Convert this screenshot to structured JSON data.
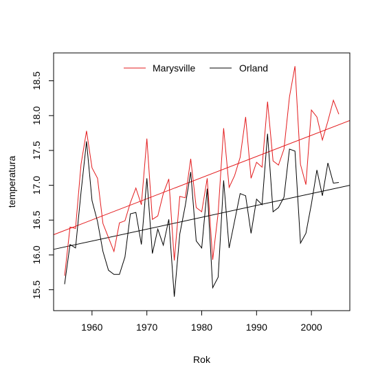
{
  "chart_data": {
    "type": "line",
    "xlabel": "Rok",
    "ylabel": "temperatura",
    "xlim": [
      1953,
      2007
    ],
    "ylim": [
      15.2,
      18.9
    ],
    "xticks": [
      "1960",
      "1970",
      "1980",
      "1990",
      "2000"
    ],
    "yticks": [
      "15.5",
      "16.0",
      "16.5",
      "17.0",
      "17.5",
      "18.0",
      "18.5"
    ],
    "legend_position": "top",
    "grid": false,
    "series": [
      {
        "name": "Marysville",
        "color": "#e31a1c",
        "x": [
          1955,
          1956,
          1957,
          1958,
          1959,
          1960,
          1961,
          1962,
          1963,
          1964,
          1965,
          1966,
          1967,
          1968,
          1969,
          1970,
          1971,
          1972,
          1973,
          1974,
          1975,
          1976,
          1977,
          1978,
          1979,
          1980,
          1981,
          1982,
          1983,
          1984,
          1985,
          1986,
          1987,
          1988,
          1989,
          1990,
          1991,
          1992,
          1993,
          1994,
          1995,
          1996,
          1997,
          1998,
          1999,
          2000,
          2001,
          2002,
          2003,
          2004,
          2005
        ],
        "y": [
          15.7,
          16.4,
          16.38,
          17.3,
          17.78,
          17.25,
          17.1,
          16.45,
          16.25,
          16.05,
          16.46,
          16.49,
          16.75,
          16.96,
          16.72,
          17.67,
          16.51,
          16.56,
          16.88,
          17.09,
          15.92,
          16.84,
          16.82,
          17.38,
          16.68,
          16.62,
          17.1,
          15.93,
          16.6,
          17.82,
          16.97,
          17.14,
          17.4,
          17.98,
          17.1,
          17.33,
          17.26,
          18.2,
          17.35,
          17.29,
          17.52,
          18.27,
          18.71,
          17.3,
          17.01,
          18.08,
          17.98,
          17.65,
          17.92,
          18.22,
          18.02
        ]
      },
      {
        "name": "Orland",
        "color": "#000000",
        "x": [
          1955,
          1956,
          1957,
          1958,
          1959,
          1960,
          1961,
          1962,
          1963,
          1964,
          1965,
          1966,
          1967,
          1968,
          1969,
          1970,
          1971,
          1972,
          1973,
          1974,
          1975,
          1976,
          1977,
          1978,
          1979,
          1980,
          1981,
          1982,
          1983,
          1984,
          1985,
          1986,
          1987,
          1988,
          1989,
          1990,
          1991,
          1992,
          1993,
          1994,
          1995,
          1996,
          1997,
          1998,
          1999,
          2000,
          2001,
          2002,
          2003,
          2004,
          2005
        ],
        "y": [
          15.58,
          16.15,
          16.1,
          16.9,
          17.63,
          16.78,
          16.48,
          16.05,
          15.78,
          15.72,
          15.72,
          15.97,
          16.59,
          16.61,
          16.15,
          17.1,
          16.02,
          16.37,
          16.14,
          16.51,
          15.4,
          16.3,
          16.71,
          17.19,
          16.2,
          16.1,
          16.95,
          15.53,
          15.68,
          17.07,
          16.1,
          16.49,
          16.88,
          16.85,
          16.31,
          16.8,
          16.72,
          17.74,
          16.62,
          16.68,
          16.83,
          17.52,
          17.49,
          16.17,
          16.31,
          16.73,
          17.22,
          16.85,
          17.32,
          17.03,
          17.04
        ]
      }
    ],
    "trendlines": [
      {
        "name": "Marysville",
        "color": "#e31a1c",
        "x": [
          1953,
          2007
        ],
        "y": [
          16.29,
          17.93
        ]
      },
      {
        "name": "Orland",
        "color": "#000000",
        "x": [
          1953,
          2007
        ],
        "y": [
          16.08,
          17.0
        ]
      }
    ]
  }
}
